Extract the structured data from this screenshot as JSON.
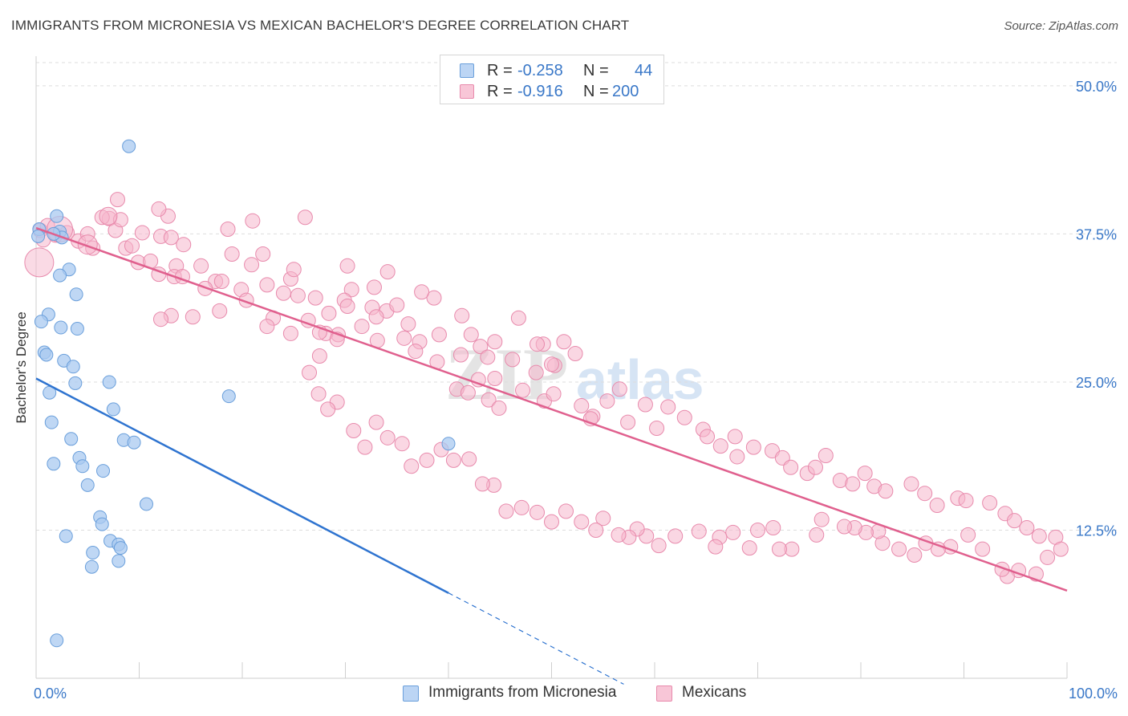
{
  "title": "IMMIGRANTS FROM MICRONESIA VS MEXICAN BACHELOR'S DEGREE CORRELATION CHART",
  "source": "Source: ZipAtlas.com",
  "watermark": {
    "zip": "ZIP",
    "atlas": "atlas"
  },
  "colors": {
    "blue_fill": "#a9c9f0",
    "blue_stroke": "#6a9fdb",
    "blue_line": "#2f74d0",
    "pink_fill": "#f5b6cc",
    "pink_stroke": "#e88aac",
    "pink_line": "#e0608e",
    "tick_label": "#3a78c8"
  },
  "legend": {
    "rows": [
      {
        "r_label": "R =",
        "r_value": "-0.258",
        "n_label": "N =",
        "n_value": "44"
      },
      {
        "r_label": "R =",
        "r_value": "-0.916",
        "n_label": "N =",
        "n_value": "200"
      }
    ]
  },
  "bottom_legend": [
    "Immigrants from Micronesia",
    "Mexicans"
  ],
  "chart_data": {
    "type": "scatter",
    "xlabel": "",
    "ylabel": "Bachelor's Degree",
    "xlim": [
      0,
      100
    ],
    "ylim": [
      0,
      52.5
    ],
    "x_tick_labels": [
      "0.0%",
      "100.0%"
    ],
    "y_ticks": [
      12.5,
      25.0,
      37.5,
      50.0
    ],
    "y_tick_labels": [
      "12.5%",
      "25.0%",
      "37.5%",
      "50.0%"
    ],
    "grid": "horizontal dashed",
    "series": [
      {
        "name": "Immigrants from Micronesia",
        "points": [
          [
            0.3,
            37.9
          ],
          [
            0.2,
            37.3
          ],
          [
            2.0,
            39.0
          ],
          [
            2.3,
            37.7
          ],
          [
            2.5,
            37.2
          ],
          [
            1.7,
            37.5
          ],
          [
            3.2,
            34.5
          ],
          [
            2.3,
            34.0
          ],
          [
            3.9,
            32.4
          ],
          [
            1.2,
            30.7
          ],
          [
            0.5,
            30.1
          ],
          [
            4.0,
            29.5
          ],
          [
            2.4,
            29.6
          ],
          [
            0.8,
            27.5
          ],
          [
            1.0,
            27.3
          ],
          [
            2.7,
            26.8
          ],
          [
            3.6,
            26.3
          ],
          [
            3.8,
            24.9
          ],
          [
            1.3,
            24.1
          ],
          [
            7.1,
            25.0
          ],
          [
            7.5,
            22.7
          ],
          [
            18.7,
            23.8
          ],
          [
            1.5,
            21.6
          ],
          [
            3.4,
            20.2
          ],
          [
            8.5,
            20.1
          ],
          [
            9.5,
            19.9
          ],
          [
            40.0,
            19.8
          ],
          [
            4.2,
            18.6
          ],
          [
            1.7,
            18.1
          ],
          [
            4.5,
            17.9
          ],
          [
            6.5,
            17.5
          ],
          [
            5.0,
            16.3
          ],
          [
            10.7,
            14.7
          ],
          [
            6.2,
            13.6
          ],
          [
            6.4,
            13.0
          ],
          [
            2.9,
            12.0
          ],
          [
            7.2,
            11.6
          ],
          [
            8.0,
            11.3
          ],
          [
            8.2,
            11.0
          ],
          [
            5.5,
            10.6
          ],
          [
            8.0,
            9.9
          ],
          [
            5.4,
            9.4
          ],
          [
            2.0,
            3.2
          ],
          [
            9.0,
            44.9
          ]
        ],
        "trend": {
          "x": [
            0,
            40
          ],
          "y": [
            25.3,
            7.2
          ]
        },
        "trend_extension": {
          "x": [
            40,
            57
          ],
          "y": [
            7.2,
            -0.5
          ]
        }
      },
      {
        "name": "Mexicans",
        "points": [
          [
            0.4,
            37.8
          ],
          [
            1.1,
            38.2
          ],
          [
            0.7,
            37.0
          ],
          [
            1.9,
            37.4
          ],
          [
            3.0,
            37.6
          ],
          [
            4.1,
            36.9
          ],
          [
            5.0,
            37.5
          ],
          [
            5.5,
            36.3
          ],
          [
            7.1,
            38.8
          ],
          [
            7.7,
            37.8
          ],
          [
            6.4,
            38.9
          ],
          [
            8.2,
            38.7
          ],
          [
            7.9,
            40.4
          ],
          [
            8.7,
            36.3
          ],
          [
            9.3,
            36.5
          ],
          [
            10.3,
            37.6
          ],
          [
            9.9,
            35.1
          ],
          [
            11.1,
            35.2
          ],
          [
            12.1,
            37.3
          ],
          [
            12.8,
            39.0
          ],
          [
            11.9,
            39.6
          ],
          [
            13.1,
            37.2
          ],
          [
            14.3,
            36.6
          ],
          [
            13.6,
            34.8
          ],
          [
            11.9,
            34.1
          ],
          [
            13.4,
            33.9
          ],
          [
            16.0,
            34.8
          ],
          [
            17.4,
            33.5
          ],
          [
            16.4,
            32.9
          ],
          [
            18.6,
            37.9
          ],
          [
            18.0,
            33.5
          ],
          [
            19.0,
            35.8
          ],
          [
            21.0,
            38.6
          ],
          [
            22.0,
            35.8
          ],
          [
            20.9,
            34.9
          ],
          [
            22.4,
            33.2
          ],
          [
            24.0,
            32.5
          ],
          [
            19.9,
            32.8
          ],
          [
            24.7,
            33.7
          ],
          [
            25.4,
            32.3
          ],
          [
            25.0,
            34.5
          ],
          [
            26.1,
            38.9
          ],
          [
            27.1,
            32.1
          ],
          [
            26.4,
            30.2
          ],
          [
            30.2,
            34.8
          ],
          [
            30.6,
            32.8
          ],
          [
            28.4,
            30.8
          ],
          [
            29.9,
            31.9
          ],
          [
            30.2,
            31.4
          ],
          [
            32.8,
            33.0
          ],
          [
            34.1,
            34.3
          ],
          [
            34.0,
            31.0
          ],
          [
            36.1,
            29.9
          ],
          [
            38.6,
            32.1
          ],
          [
            37.4,
            32.6
          ],
          [
            35.0,
            31.5
          ],
          [
            32.6,
            31.3
          ],
          [
            33.0,
            30.5
          ],
          [
            29.3,
            29.0
          ],
          [
            28.1,
            29.1
          ],
          [
            27.5,
            29.2
          ],
          [
            24.7,
            29.1
          ],
          [
            23.0,
            30.4
          ],
          [
            22.4,
            29.7
          ],
          [
            20.4,
            31.9
          ],
          [
            17.8,
            31.0
          ],
          [
            15.2,
            30.5
          ],
          [
            13.1,
            30.6
          ],
          [
            12.1,
            30.3
          ],
          [
            14.2,
            33.9
          ],
          [
            27.5,
            27.2
          ],
          [
            29.2,
            28.6
          ],
          [
            31.6,
            29.7
          ],
          [
            33.1,
            28.5
          ],
          [
            35.7,
            28.7
          ],
          [
            37.2,
            28.4
          ],
          [
            36.8,
            27.6
          ],
          [
            39.1,
            29.0
          ],
          [
            41.3,
            30.6
          ],
          [
            42.2,
            29.0
          ],
          [
            44.5,
            28.4
          ],
          [
            43.1,
            28.0
          ],
          [
            46.8,
            30.4
          ],
          [
            49.2,
            28.2
          ],
          [
            48.6,
            28.2
          ],
          [
            51.2,
            28.4
          ],
          [
            52.3,
            27.4
          ],
          [
            50.3,
            26.4
          ],
          [
            50.0,
            26.5
          ],
          [
            48.5,
            25.8
          ],
          [
            46.2,
            26.9
          ],
          [
            43.8,
            27.1
          ],
          [
            41.2,
            27.3
          ],
          [
            38.9,
            26.7
          ],
          [
            40.8,
            24.4
          ],
          [
            41.9,
            24.1
          ],
          [
            44.5,
            25.3
          ],
          [
            42.9,
            25.2
          ],
          [
            43.9,
            23.5
          ],
          [
            44.9,
            22.8
          ],
          [
            47.2,
            24.3
          ],
          [
            49.3,
            23.4
          ],
          [
            50.2,
            24.0
          ],
          [
            52.9,
            23.0
          ],
          [
            55.4,
            23.4
          ],
          [
            54.0,
            22.1
          ],
          [
            53.8,
            21.9
          ],
          [
            56.6,
            24.4
          ],
          [
            57.4,
            21.6
          ],
          [
            59.1,
            23.1
          ],
          [
            60.2,
            21.1
          ],
          [
            61.3,
            22.9
          ],
          [
            62.9,
            22.0
          ],
          [
            64.7,
            21.0
          ],
          [
            65.1,
            20.4
          ],
          [
            67.8,
            20.4
          ],
          [
            66.4,
            19.6
          ],
          [
            68.0,
            18.7
          ],
          [
            69.6,
            19.5
          ],
          [
            71.4,
            19.2
          ],
          [
            72.4,
            18.6
          ],
          [
            73.2,
            17.8
          ],
          [
            74.8,
            17.3
          ],
          [
            76.6,
            18.8
          ],
          [
            75.6,
            17.8
          ],
          [
            78.0,
            16.7
          ],
          [
            79.2,
            16.4
          ],
          [
            80.4,
            17.3
          ],
          [
            81.3,
            16.2
          ],
          [
            82.4,
            15.8
          ],
          [
            84.9,
            16.4
          ],
          [
            86.2,
            15.6
          ],
          [
            87.4,
            14.6
          ],
          [
            89.4,
            15.2
          ],
          [
            90.2,
            15.0
          ],
          [
            92.5,
            14.8
          ],
          [
            94.0,
            13.9
          ],
          [
            94.9,
            13.3
          ],
          [
            96.1,
            12.7
          ],
          [
            97.3,
            12.0
          ],
          [
            98.9,
            11.9
          ],
          [
            99.4,
            10.9
          ],
          [
            98.1,
            10.2
          ],
          [
            97.0,
            8.8
          ],
          [
            95.3,
            9.1
          ],
          [
            94.2,
            8.6
          ],
          [
            93.7,
            9.2
          ],
          [
            91.8,
            10.9
          ],
          [
            90.4,
            12.1
          ],
          [
            88.7,
            11.1
          ],
          [
            87.5,
            10.9
          ],
          [
            86.3,
            11.4
          ],
          [
            85.2,
            10.4
          ],
          [
            83.7,
            10.9
          ],
          [
            82.1,
            11.4
          ],
          [
            81.7,
            12.4
          ],
          [
            80.5,
            12.3
          ],
          [
            79.4,
            12.7
          ],
          [
            78.4,
            12.8
          ],
          [
            76.2,
            13.4
          ],
          [
            75.7,
            12.1
          ],
          [
            73.3,
            10.9
          ],
          [
            72.1,
            10.9
          ],
          [
            71.5,
            12.7
          ],
          [
            70.0,
            12.5
          ],
          [
            69.2,
            11.0
          ],
          [
            67.6,
            12.3
          ],
          [
            66.3,
            11.9
          ],
          [
            65.9,
            11.1
          ],
          [
            64.3,
            12.4
          ],
          [
            62.0,
            12.0
          ],
          [
            60.4,
            11.2
          ],
          [
            59.2,
            12.0
          ],
          [
            58.3,
            12.6
          ],
          [
            57.5,
            11.9
          ],
          [
            56.5,
            12.1
          ],
          [
            55.0,
            13.5
          ],
          [
            54.3,
            12.5
          ],
          [
            52.9,
            13.2
          ],
          [
            51.4,
            14.1
          ],
          [
            50.0,
            13.2
          ],
          [
            48.6,
            14.0
          ],
          [
            47.1,
            14.4
          ],
          [
            45.6,
            14.1
          ],
          [
            44.4,
            16.3
          ],
          [
            43.3,
            16.4
          ],
          [
            42.0,
            18.5
          ],
          [
            40.5,
            18.4
          ],
          [
            39.3,
            19.3
          ],
          [
            37.9,
            18.4
          ],
          [
            36.4,
            17.9
          ],
          [
            35.5,
            19.8
          ],
          [
            34.1,
            20.3
          ],
          [
            33.0,
            21.6
          ],
          [
            31.9,
            19.5
          ],
          [
            30.8,
            20.9
          ],
          [
            29.2,
            23.3
          ],
          [
            28.3,
            22.7
          ],
          [
            27.4,
            24.0
          ],
          [
            26.5,
            25.8
          ]
        ],
        "trend": {
          "x": [
            0,
            100
          ],
          "y": [
            38.0,
            7.4
          ]
        }
      }
    ]
  }
}
